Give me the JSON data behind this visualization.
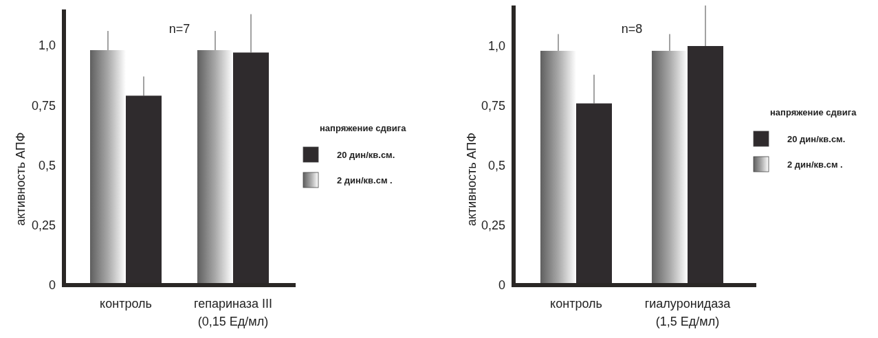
{
  "chart_data": [
    {
      "type": "bar",
      "ylabel": "активность АПФ",
      "legend_title": "напряжение сдвига",
      "legend": "right",
      "annotations": [
        "n=7"
      ],
      "categories": [
        "контроль",
        "гепариназа III\n(0,15 Ед/мл)"
      ],
      "ylim": [
        0,
        1.15
      ],
      "yticks": [
        {
          "value": 0,
          "label": "0"
        },
        {
          "value": 0.25,
          "label": "0,25"
        },
        {
          "value": 0.5,
          "label": "0,5"
        },
        {
          "value": 0.75,
          "label": "0,75"
        },
        {
          "value": 1,
          "label": "1,0"
        }
      ],
      "series": [
        {
          "name": "2 дин/кв.см .",
          "color": "#a8a8a8",
          "values": [
            0.98,
            0.98
          ],
          "errors": [
            [
              0.98,
              1.06
            ],
            [
              0.98,
              1.06
            ]
          ]
        },
        {
          "name": "20 дин/кв.см.",
          "color": "#2f2b2d",
          "values": [
            0.79,
            0.97
          ],
          "errors": [
            [
              0.79,
              0.87
            ],
            [
              0.97,
              1.13
            ]
          ]
        }
      ]
    },
    {
      "type": "bar",
      "ylabel": "активность АПФ",
      "legend_title": "напряжение сдвига",
      "legend": "right",
      "annotations": [
        "n=8"
      ],
      "categories": [
        "контроль",
        "гиалуронидаза\n(1,5 Ед/мл)"
      ],
      "ylim": [
        0,
        1.18
      ],
      "yticks": [
        {
          "value": 0,
          "label": "0"
        },
        {
          "value": 0.25,
          "label": "0,25"
        },
        {
          "value": 0.5,
          "label": "0,5"
        },
        {
          "value": 0.75,
          "label": "0,75"
        },
        {
          "value": 1,
          "label": "1,0"
        }
      ],
      "series": [
        {
          "name": "2 дин/кв.см .",
          "color": "#a8a8a8",
          "values": [
            0.98,
            0.98
          ],
          "errors": [
            [
              0.98,
              1.05
            ],
            [
              0.98,
              1.05
            ]
          ]
        },
        {
          "name": "20 дин/кв.см.",
          "color": "#2f2b2d",
          "values": [
            0.76,
            1.0
          ],
          "errors": [
            [
              0.76,
              0.88
            ],
            [
              1.0,
              1.17
            ]
          ]
        }
      ]
    }
  ]
}
